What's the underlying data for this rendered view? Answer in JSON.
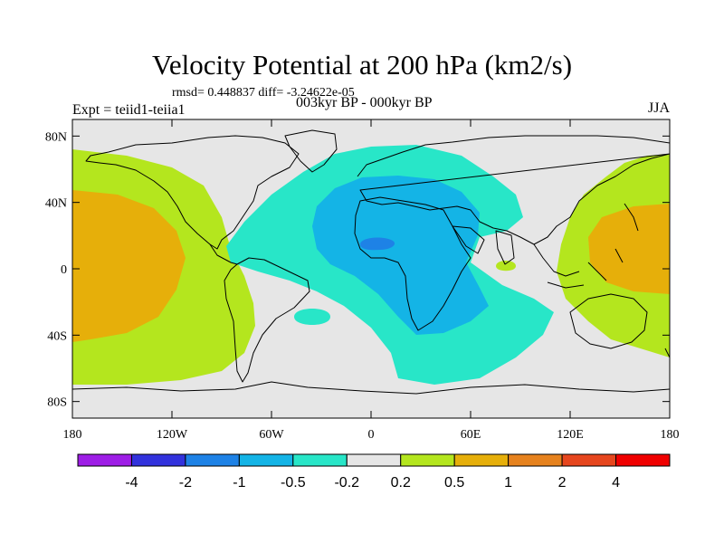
{
  "title": "Velocity Potential at 200 hPa (km2/s)",
  "stats_line": "rmsd= 0.448837 diff= -3.24622e-05",
  "experiment": "Expt = teiid1-teiia1",
  "subtitle": "003kyr BP - 000kyr BP",
  "season": "JJA",
  "map": {
    "lon_range": [
      -180,
      180
    ],
    "lat_range": [
      -90,
      90
    ],
    "x_ticks": [
      {
        "lon": -180,
        "label": "180"
      },
      {
        "lon": -120,
        "label": "120W"
      },
      {
        "lon": -60,
        "label": "60W"
      },
      {
        "lon": 0,
        "label": "0"
      },
      {
        "lon": 60,
        "label": "60E"
      },
      {
        "lon": 120,
        "label": "120E"
      },
      {
        "lon": 180,
        "label": "180"
      }
    ],
    "y_ticks": [
      {
        "lat": 80,
        "label": "80N"
      },
      {
        "lat": 40,
        "label": "40N"
      },
      {
        "lat": 0,
        "label": "0"
      },
      {
        "lat": -40,
        "label": "40S"
      },
      {
        "lat": -80,
        "label": "80S"
      }
    ],
    "background_color": "#e6e6e6"
  },
  "colorbar": {
    "levels": [
      "-4",
      "-2",
      "-1",
      "-0.5",
      "-0.2",
      "0.2",
      "0.5",
      "1",
      "2",
      "4"
    ],
    "colors": [
      "#9e1ee6",
      "#3232dc",
      "#1e82e6",
      "#14b4e6",
      "#28e6c8",
      "#e6e6e6",
      "#b4e61e",
      "#e6af0a",
      "#e6821e",
      "#e6461e",
      "#f00000"
    ]
  }
}
